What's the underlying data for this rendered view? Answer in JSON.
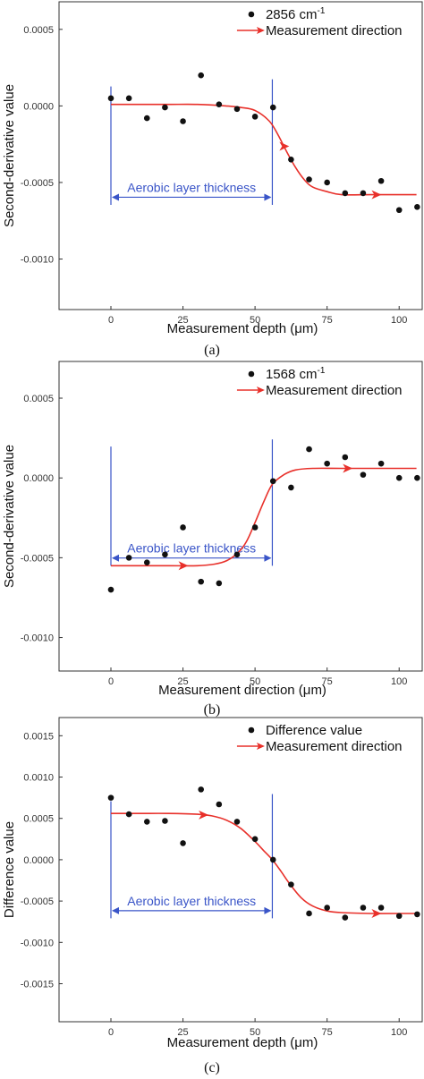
{
  "colors": {
    "curve": "#e8302a",
    "annotation": "#3a55c8",
    "points": "#111111",
    "frame": "#333333"
  },
  "chart_data": [
    {
      "type": "scatter",
      "panel_label": "(a)",
      "xlabel": "Measurement depth (μm)",
      "ylabel": "Second-derivative value",
      "xlim": [
        -18,
        108
      ],
      "ylim": [
        -0.00133,
        0.00068
      ],
      "xticks": [
        0,
        25,
        50,
        75,
        100
      ],
      "yticks": [
        0.0005,
        0.0,
        -0.0005,
        -0.001
      ],
      "ytick_labels": [
        "0.0005",
        "0.0000",
        "-0.0005",
        "-0.0010"
      ],
      "legend": {
        "position": "top-right",
        "marker_label": "2856 cm",
        "marker_sup": "-1",
        "line_label": "Measurement direction"
      },
      "series": [
        {
          "x": [
            0,
            6.25,
            12.5,
            18.75,
            25,
            31.25,
            37.5,
            43.75,
            50,
            56.25,
            62.5,
            68.75,
            75,
            81.25,
            87.5,
            93.75,
            100,
            106.25
          ],
          "y": [
            5e-05,
            5e-05,
            -8e-05,
            -1e-05,
            -0.0001,
            0.0002,
            1e-05,
            -2e-05,
            -7e-05,
            -1e-05,
            -0.00035,
            -0.00048,
            -0.0005,
            -0.00057,
            -0.00057,
            -0.00049,
            -0.00068,
            -0.00066
          ]
        }
      ],
      "fit_curve": {
        "x": [
          0,
          10,
          20,
          30,
          40,
          45,
          50,
          55,
          58,
          61,
          64,
          67,
          70,
          75,
          80,
          90,
          100,
          106
        ],
        "y": [
          1e-05,
          1e-05,
          1e-05,
          1e-05,
          0.0,
          -1e-05,
          -3e-05,
          -0.0001,
          -0.00019,
          -0.0003,
          -0.0004,
          -0.00048,
          -0.00053,
          -0.00056,
          -0.00058,
          -0.00058,
          -0.00058,
          -0.00058
        ]
      },
      "direction_arrows_x": [
        60,
        92
      ],
      "annotation": {
        "text": "Aerobic layer thickness",
        "x_start": 0,
        "x_end": 56
      }
    },
    {
      "type": "scatter",
      "panel_label": "(b)",
      "xlabel": "Measurement direction (μm)",
      "ylabel": "Second-derivative value",
      "xlim": [
        -18,
        108
      ],
      "ylim": [
        -0.00121,
        0.00073
      ],
      "xticks": [
        0,
        25,
        50,
        75,
        100
      ],
      "yticks": [
        0.0005,
        0.0,
        -0.0005,
        -0.001
      ],
      "ytick_labels": [
        "0.0005",
        "0.0000",
        "-0.0005",
        "-0.0010"
      ],
      "legend": {
        "position": "top-right",
        "marker_label": "1568 cm",
        "marker_sup": "-1",
        "line_label": "Measurement direction"
      },
      "series": [
        {
          "x": [
            0,
            6.25,
            12.5,
            18.75,
            25,
            31.25,
            37.5,
            43.75,
            50,
            56.25,
            62.5,
            68.75,
            75,
            81.25,
            87.5,
            93.75,
            100,
            106.25
          ],
          "y": [
            -0.0007,
            -0.0005,
            -0.00053,
            -0.00048,
            -0.00031,
            -0.00065,
            -0.00066,
            -0.00048,
            -0.00031,
            -2e-05,
            -6e-05,
            0.00018,
            9e-05,
            0.00013,
            2e-05,
            9e-05,
            0.0,
            0.0
          ]
        }
      ],
      "fit_curve": {
        "x": [
          0,
          10,
          20,
          30,
          36,
          40,
          44,
          47,
          50,
          53,
          56,
          60,
          64,
          70,
          80,
          90,
          100,
          106
        ],
        "y": [
          -0.00055,
          -0.00055,
          -0.00055,
          -0.00055,
          -0.00054,
          -0.00052,
          -0.00047,
          -0.0004,
          -0.00028,
          -0.00015,
          -4e-05,
          2e-05,
          5e-05,
          6e-05,
          6e-05,
          6e-05,
          6e-05,
          6e-05
        ]
      },
      "direction_arrows_x": [
        25,
        82
      ],
      "annotation": {
        "text": "Aerobic layer thickness",
        "x_start": 0,
        "x_end": 56
      }
    },
    {
      "type": "scatter",
      "panel_label": "(c)",
      "xlabel": "Measurement depth (μm)",
      "ylabel": "Difference value",
      "xlim": [
        -18,
        108
      ],
      "ylim": [
        -0.00196,
        0.00172
      ],
      "xticks": [
        0,
        25,
        50,
        75,
        100
      ],
      "yticks": [
        0.0015,
        0.001,
        0.0005,
        0.0,
        -0.0005,
        -0.001,
        -0.0015
      ],
      "ytick_labels": [
        "0.0015",
        "0.0010",
        "0.0005",
        "0.0000",
        "-0.0005",
        "-0.0010",
        "-0.0015"
      ],
      "legend": {
        "position": "top-right",
        "marker_label": "Difference value",
        "marker_sup": "",
        "line_label": "Measurement direction"
      },
      "series": [
        {
          "x": [
            0,
            6.25,
            12.5,
            18.75,
            25,
            31.25,
            37.5,
            43.75,
            50,
            56.25,
            62.5,
            68.75,
            75,
            81.25,
            87.5,
            93.75,
            100,
            106.25
          ],
          "y": [
            0.00075,
            0.00055,
            0.00046,
            0.00047,
            0.0002,
            0.00085,
            0.00067,
            0.00046,
            0.00025,
            0.0,
            -0.0003,
            -0.00065,
            -0.00058,
            -0.0007,
            -0.00058,
            -0.00058,
            -0.00068,
            -0.00066
          ]
        }
      ],
      "fit_curve": {
        "x": [
          0,
          10,
          20,
          30,
          35,
          40,
          45,
          50,
          53,
          56,
          59,
          62,
          66,
          70,
          75,
          80,
          90,
          100,
          106
        ],
        "y": [
          0.00056,
          0.00056,
          0.00056,
          0.00055,
          0.00053,
          0.00048,
          0.00038,
          0.00022,
          0.00011,
          0.0,
          -0.00014,
          -0.00029,
          -0.00046,
          -0.00056,
          -0.00062,
          -0.00064,
          -0.00065,
          -0.00065,
          -0.00065
        ]
      },
      "direction_arrows_x": [
        32,
        92
      ],
      "annotation": {
        "text": "Aerobic layer thickness",
        "x_start": 0,
        "x_end": 56
      }
    }
  ]
}
